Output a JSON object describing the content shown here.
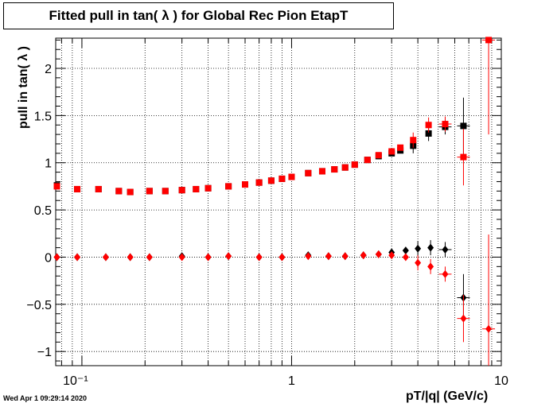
{
  "title": "Fitted pull in tan( λ ) for Global Rec Pion EtapT",
  "timestamp": "Wed Apr  1 09:29:14 2020",
  "colors": {
    "black_series": "#000000",
    "red_series": "#ff0000"
  },
  "chart_data": {
    "type": "scatter",
    "xlabel": "pT/|q| (GeV/c)",
    "ylabel": "pull in tan( λ )",
    "xscale": "log",
    "xlim": [
      0.075,
      10
    ],
    "ylim": [
      -1.15,
      2.32
    ],
    "grid": true,
    "x_tick_labels": [
      "10⁻¹",
      "1",
      "10"
    ],
    "y_tick_labels": [
      "−1",
      "−0.5",
      "0",
      "0.5",
      "1",
      "1.5",
      "2"
    ],
    "series": [
      {
        "color": "black",
        "marker": "square",
        "points": [
          [
            0.076,
            0.76
          ],
          [
            0.095,
            0.72
          ],
          [
            0.12,
            0.72
          ],
          [
            0.15,
            0.7
          ],
          [
            0.17,
            0.69
          ],
          [
            0.21,
            0.7
          ],
          [
            0.25,
            0.7
          ],
          [
            0.3,
            0.71
          ],
          [
            0.35,
            0.72
          ],
          [
            0.4,
            0.73
          ],
          [
            0.5,
            0.75
          ],
          [
            0.6,
            0.77
          ],
          [
            0.7,
            0.79
          ],
          [
            0.8,
            0.81
          ],
          [
            0.9,
            0.83
          ],
          [
            1.0,
            0.85
          ],
          [
            1.2,
            0.89
          ],
          [
            1.4,
            0.91
          ],
          [
            1.6,
            0.93
          ],
          [
            1.8,
            0.95
          ],
          [
            2.0,
            0.98
          ],
          [
            2.3,
            1.03
          ],
          [
            2.6,
            1.07
          ],
          [
            3.0,
            1.1
          ],
          [
            3.3,
            1.13
          ],
          [
            3.8,
            1.18
          ],
          [
            4.5,
            1.31
          ],
          [
            5.4,
            1.38
          ],
          [
            6.6,
            1.39
          ]
        ]
      },
      {
        "color": "red",
        "marker": "square",
        "points": [
          [
            0.076,
            0.75
          ],
          [
            0.095,
            0.72
          ],
          [
            0.12,
            0.72
          ],
          [
            0.15,
            0.7
          ],
          [
            0.17,
            0.69
          ],
          [
            0.21,
            0.7
          ],
          [
            0.25,
            0.7
          ],
          [
            0.3,
            0.71
          ],
          [
            0.35,
            0.72
          ],
          [
            0.4,
            0.73
          ],
          [
            0.5,
            0.75
          ],
          [
            0.6,
            0.77
          ],
          [
            0.7,
            0.79
          ],
          [
            0.8,
            0.81
          ],
          [
            0.9,
            0.83
          ],
          [
            1.0,
            0.85
          ],
          [
            1.2,
            0.89
          ],
          [
            1.4,
            0.91
          ],
          [
            1.6,
            0.93
          ],
          [
            1.8,
            0.95
          ],
          [
            2.0,
            0.98
          ],
          [
            2.3,
            1.03
          ],
          [
            2.6,
            1.08
          ],
          [
            3.0,
            1.12
          ],
          [
            3.3,
            1.16
          ],
          [
            3.8,
            1.24
          ],
          [
            4.5,
            1.4
          ],
          [
            5.4,
            1.41
          ],
          [
            6.6,
            1.06
          ],
          [
            8.7,
            2.3
          ]
        ]
      },
      {
        "color": "black",
        "marker": "diamond",
        "points": [
          [
            0.076,
            0.0
          ],
          [
            0.095,
            0.0
          ],
          [
            0.13,
            0.0
          ],
          [
            0.17,
            0.0
          ],
          [
            0.21,
            0.0
          ],
          [
            0.3,
            0.01
          ],
          [
            0.4,
            0.0
          ],
          [
            0.5,
            0.01
          ],
          [
            0.7,
            0.0
          ],
          [
            0.9,
            0.0
          ],
          [
            1.2,
            0.02
          ],
          [
            1.5,
            0.01
          ],
          [
            1.8,
            0.01
          ],
          [
            2.2,
            0.02
          ],
          [
            2.6,
            0.03
          ],
          [
            3.0,
            0.05
          ],
          [
            3.5,
            0.07
          ],
          [
            4.0,
            0.09
          ],
          [
            4.6,
            0.1
          ],
          [
            5.4,
            0.08
          ],
          [
            6.6,
            -0.43
          ]
        ]
      },
      {
        "color": "red",
        "marker": "diamond",
        "points": [
          [
            0.076,
            0.0
          ],
          [
            0.095,
            0.0
          ],
          [
            0.13,
            0.0
          ],
          [
            0.17,
            0.0
          ],
          [
            0.21,
            0.0
          ],
          [
            0.3,
            0.0
          ],
          [
            0.4,
            0.0
          ],
          [
            0.5,
            0.01
          ],
          [
            0.7,
            0.0
          ],
          [
            0.9,
            0.0
          ],
          [
            1.2,
            0.01
          ],
          [
            1.5,
            0.01
          ],
          [
            1.8,
            0.01
          ],
          [
            2.2,
            0.02
          ],
          [
            2.6,
            0.03
          ],
          [
            3.0,
            0.02
          ],
          [
            3.5,
            0.0
          ],
          [
            4.0,
            -0.06
          ],
          [
            4.6,
            -0.1
          ],
          [
            5.4,
            -0.18
          ],
          [
            6.6,
            -0.65
          ],
          [
            8.7,
            -0.76
          ]
        ]
      }
    ]
  }
}
